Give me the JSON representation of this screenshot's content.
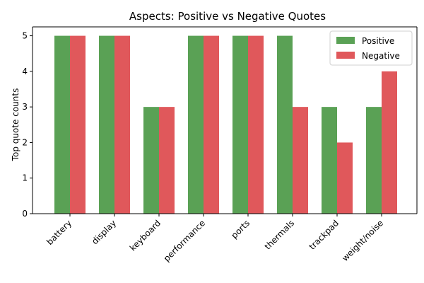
{
  "chart_data": {
    "type": "bar",
    "title": "Aspects: Positive vs Negative Quotes",
    "xlabel": "",
    "ylabel": "Top quote counts",
    "categories": [
      "battery",
      "display",
      "keyboard",
      "performance",
      "ports",
      "thermals",
      "trackpad",
      "weight/noise"
    ],
    "series": [
      {
        "name": "Positive",
        "color": "#5aa155",
        "values": [
          5,
          5,
          3,
          5,
          5,
          5,
          3,
          3
        ]
      },
      {
        "name": "Negative",
        "color": "#e0585b",
        "values": [
          5,
          5,
          3,
          5,
          5,
          3,
          2,
          4
        ]
      }
    ],
    "ylim": [
      0,
      5.25
    ],
    "yticks": [
      0,
      1,
      2,
      3,
      4,
      5
    ],
    "grid": false,
    "legend_position": "top-right"
  }
}
